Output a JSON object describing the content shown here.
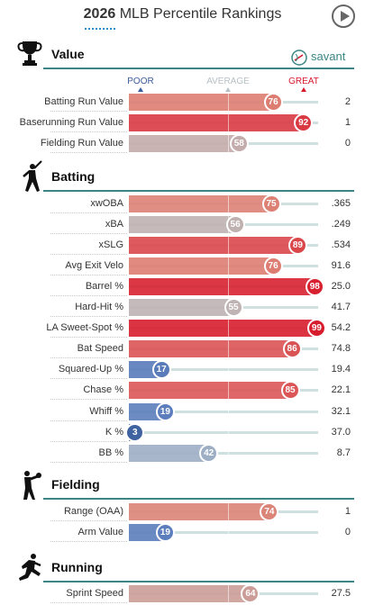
{
  "header": {
    "year": "2026",
    "title": "MLB Percentile Rankings"
  },
  "brand": {
    "text": "savant",
    "accent": "#3b8585"
  },
  "scale": {
    "poor": "POOR",
    "average": "AVERAGE",
    "great": "GREAT"
  },
  "colors": {
    "poor": "#3a5d9c",
    "average": "#b7c0c4",
    "great": "#d7192a",
    "section_line": "#3b8585"
  },
  "chart_data": {
    "type": "bar",
    "value_range": [
      0,
      100
    ],
    "sections": [
      {
        "title": "Value",
        "icon": "trophy-icon",
        "metrics": [
          {
            "label": "Batting Run Value",
            "percentile": 76,
            "value": "2"
          },
          {
            "label": "Baserunning Run Value",
            "percentile": 92,
            "value": "1"
          },
          {
            "label": "Fielding Run Value",
            "percentile": 58,
            "value": "0"
          }
        ]
      },
      {
        "title": "Batting",
        "icon": "batter-icon",
        "metrics": [
          {
            "label": "xwOBA",
            "percentile": 75,
            "value": ".365"
          },
          {
            "label": "xBA",
            "percentile": 56,
            "value": ".249"
          },
          {
            "label": "xSLG",
            "percentile": 89,
            "value": ".534"
          },
          {
            "label": "Avg Exit Velo",
            "percentile": 76,
            "value": "91.6"
          },
          {
            "label": "Barrel %",
            "percentile": 98,
            "value": "25.0"
          },
          {
            "label": "Hard-Hit %",
            "percentile": 55,
            "value": "41.7"
          },
          {
            "label": "LA Sweet-Spot %",
            "percentile": 99,
            "value": "54.2"
          },
          {
            "label": "Bat Speed",
            "percentile": 86,
            "value": "74.8"
          },
          {
            "label": "Squared-Up %",
            "percentile": 17,
            "value": "19.4"
          },
          {
            "label": "Chase %",
            "percentile": 85,
            "value": "22.1"
          },
          {
            "label": "Whiff %",
            "percentile": 19,
            "value": "32.1"
          },
          {
            "label": "K %",
            "percentile": 3,
            "value": "37.0"
          },
          {
            "label": "BB %",
            "percentile": 42,
            "value": "8.7"
          }
        ]
      },
      {
        "title": "Fielding",
        "icon": "fielder-icon",
        "metrics": [
          {
            "label": "Range (OAA)",
            "percentile": 74,
            "value": "1"
          },
          {
            "label": "Arm Value",
            "percentile": 19,
            "value": "0"
          }
        ]
      },
      {
        "title": "Running",
        "icon": "runner-icon",
        "metrics": [
          {
            "label": "Sprint Speed",
            "percentile": 64,
            "value": "27.5"
          }
        ]
      }
    ]
  }
}
